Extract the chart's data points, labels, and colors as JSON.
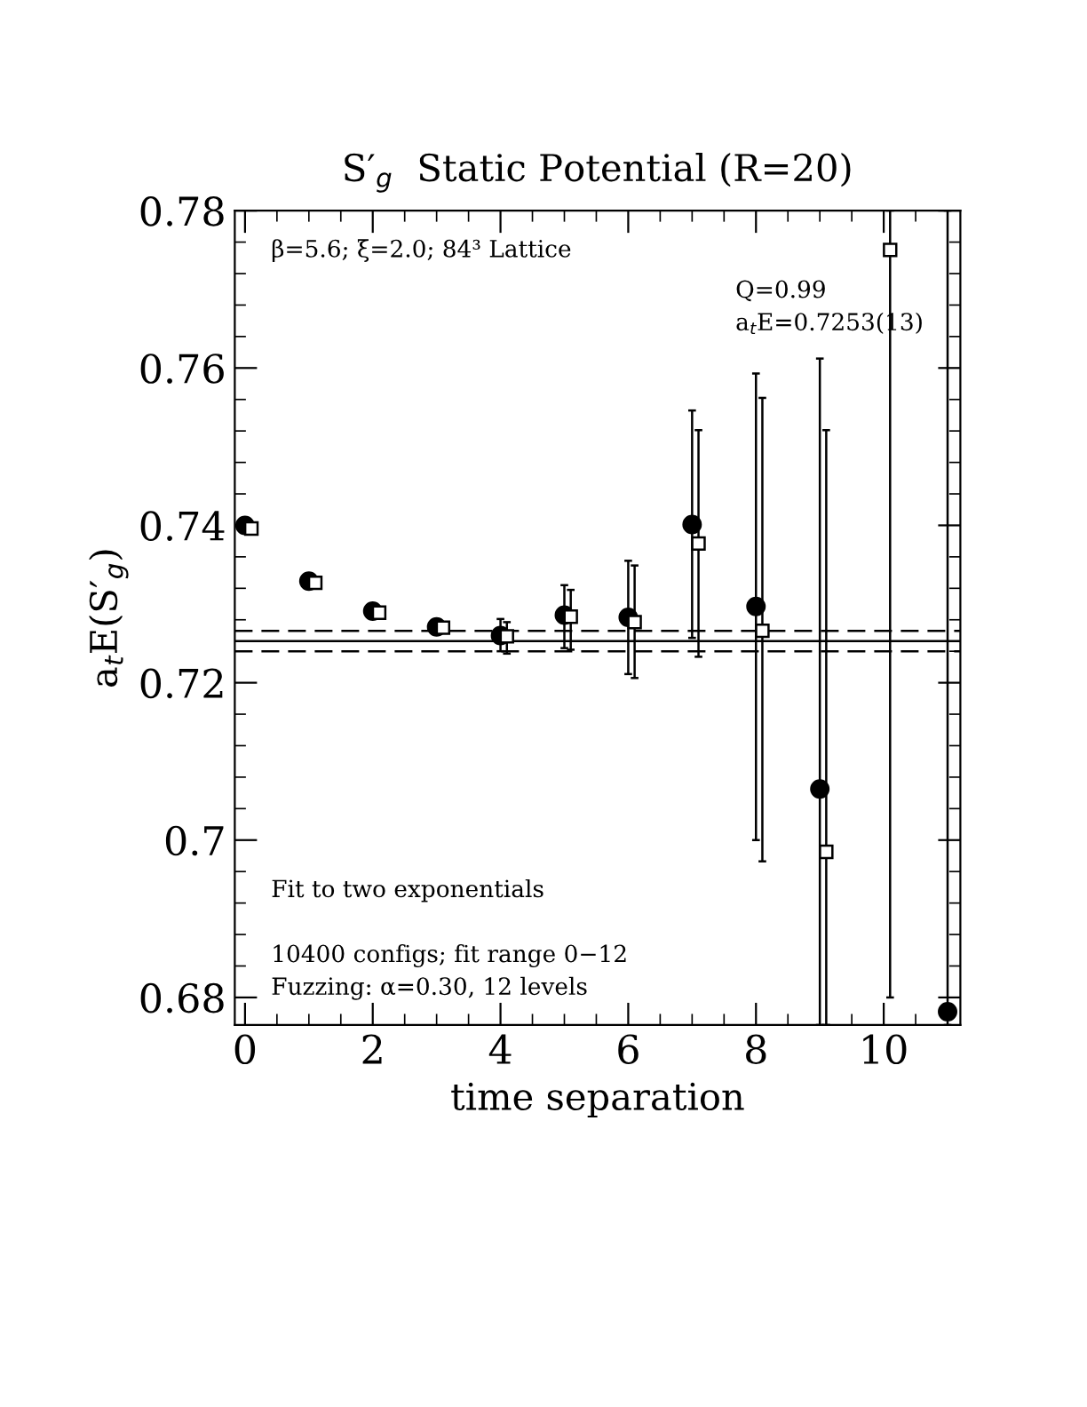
{
  "chart_data": {
    "type": "scatter",
    "title": "S′$_{g}$  Static Potential (R=20)",
    "xlabel": "time separation",
    "ylabel": "a$_{t}$E(S′$_{g}$)",
    "xlim": [
      -0.16,
      11.2
    ],
    "ylim": [
      0.6765,
      0.78
    ],
    "xticks": [
      0,
      2,
      4,
      6,
      8,
      10
    ],
    "yticks": [
      0.68,
      0.7,
      0.72,
      0.74,
      0.76,
      0.78
    ],
    "series": [
      {
        "color": "#000000",
        "marker": "circle",
        "x": [
          0,
          1,
          2,
          3,
          4,
          5,
          6,
          7,
          8,
          9,
          10,
          11
        ],
        "values": [
          0.74,
          0.7329,
          0.7291,
          0.7271,
          0.726,
          0.7286,
          0.7283,
          0.7401,
          0.7297,
          0.7065,
          null,
          0.6782
        ],
        "errors": [
          null,
          null,
          null,
          null,
          [
            0.724,
            0.7281
          ],
          [
            0.7244,
            0.7324
          ],
          [
            0.7211,
            0.7355
          ],
          [
            0.7257,
            0.7546
          ],
          [
            0.7,
            0.7593
          ],
          [
            0.6765,
            0.7612
          ],
          null,
          [
            0.6765,
            0.78
          ]
        ]
      },
      {
        "color": "#000000",
        "marker": "square",
        "x": [
          0.1,
          1.1,
          2.1,
          3.1,
          4.1,
          5.1,
          6.1,
          7.1,
          8.1,
          9.1,
          10.1
        ],
        "values": [
          0.7396,
          0.7327,
          0.7289,
          0.727,
          0.7259,
          0.7284,
          0.7277,
          0.7377,
          0.7266,
          0.6985,
          0.775
        ],
        "errors": [
          null,
          null,
          null,
          null,
          [
            0.7237,
            0.7277
          ],
          [
            0.7242,
            0.7318
          ],
          [
            0.7206,
            0.7349
          ],
          [
            0.7233,
            0.7521
          ],
          [
            0.6973,
            0.7562
          ],
          [
            0.6765,
            0.7521
          ],
          [
            0.68,
            0.78
          ]
        ]
      }
    ],
    "ref_lines": [
      {
        "axis": "y",
        "value": 0.7253,
        "color": "#000000",
        "line_style": "solid"
      },
      {
        "axis": "y",
        "value": 0.7266,
        "color": "#000000",
        "line_style": "dashed"
      },
      {
        "axis": "y",
        "value": 0.724,
        "color": "#000000",
        "line_style": "dashed"
      }
    ],
    "annotations": [
      "β=5.6; ξ=2.0; 84³ Lattice",
      "Q=0.99",
      "a$_{t}$E=0.7253(13)",
      "Fit to two exponentials",
      "10400 configs; fit range 0−12",
      "Fuzzing: α=0.30, 12 levels"
    ]
  }
}
